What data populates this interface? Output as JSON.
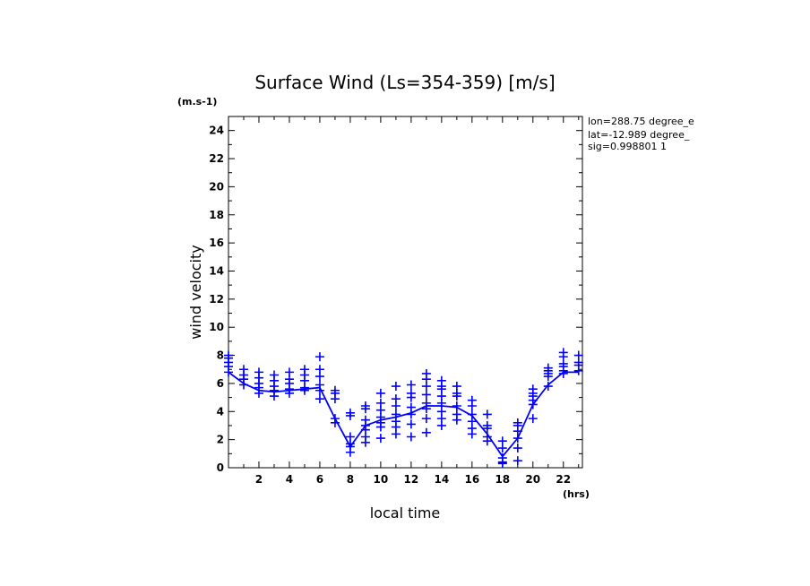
{
  "chart_data": {
    "type": "line",
    "title": "Surface Wind  (Ls=354-359) [m/s]",
    "xlabel": "local time",
    "ylabel": "wind velocity",
    "x_unit": "(hrs)",
    "y_unit": "(m.s-1)",
    "xlim": [
      0,
      23.25
    ],
    "ylim": [
      0,
      25
    ],
    "x_ticks": [
      2,
      4,
      6,
      8,
      10,
      12,
      14,
      16,
      18,
      20,
      22
    ],
    "y_ticks": [
      0,
      2,
      4,
      6,
      8,
      10,
      12,
      14,
      16,
      18,
      20,
      22,
      24
    ],
    "info_lines": [
      "lon=288.75 degree_e",
      "lat=-12.989 degree_",
      "sig=0.998801 1"
    ],
    "color": "#0000ff",
    "mean": {
      "x": [
        0,
        1,
        2,
        3,
        4,
        5,
        6,
        7,
        8,
        9,
        10,
        11,
        12,
        13,
        14,
        15,
        16,
        17,
        18,
        19,
        20,
        21,
        22,
        23
      ],
      "y": [
        6.8,
        6.0,
        5.5,
        5.4,
        5.5,
        5.6,
        5.7,
        3.5,
        1.5,
        3.0,
        3.4,
        3.6,
        3.9,
        4.4,
        4.4,
        4.3,
        3.7,
        2.4,
        0.8,
        2.1,
        4.5,
        5.9,
        6.8,
        6.8
      ]
    },
    "scatter": {
      "x": [
        0,
        1,
        2,
        3,
        4,
        5,
        6,
        7,
        8,
        9,
        10,
        11,
        12,
        13,
        14,
        15,
        16,
        17,
        18,
        19,
        20,
        21,
        22,
        23
      ],
      "values": [
        [
          6.8,
          7.2,
          7.5,
          7.8,
          8.0
        ],
        [
          5.9,
          6.3,
          6.6,
          7.0
        ],
        [
          5.3,
          5.7,
          6.0,
          6.4,
          6.8
        ],
        [
          5.1,
          5.5,
          5.8,
          6.2,
          6.6
        ],
        [
          5.3,
          5.6,
          6.0,
          6.3,
          6.8
        ],
        [
          5.5,
          5.7,
          6.2,
          6.6,
          7.0
        ],
        [
          4.9,
          5.5,
          5.9,
          6.5,
          7.0,
          7.9
        ],
        [
          3.2,
          3.5,
          4.9,
          5.3,
          5.5
        ],
        [
          1.1,
          1.5,
          1.7,
          2.2,
          3.7,
          3.9
        ],
        [
          1.8,
          2.2,
          2.7,
          3.0,
          3.4,
          4.2,
          4.4
        ],
        [
          2.1,
          2.9,
          3.2,
          3.6,
          4.1,
          4.6,
          5.3
        ],
        [
          2.4,
          2.9,
          3.3,
          3.8,
          4.4,
          4.9,
          5.8
        ],
        [
          2.2,
          3.1,
          3.8,
          4.3,
          5.0,
          5.3,
          5.9
        ],
        [
          2.5,
          3.5,
          4.2,
          4.6,
          5.2,
          5.8,
          6.3,
          6.7
        ],
        [
          3.0,
          3.5,
          4.0,
          4.6,
          5.1,
          5.6,
          5.8,
          6.2
        ],
        [
          3.4,
          3.8,
          4.4,
          5.1,
          5.3,
          5.8
        ],
        [
          2.4,
          2.8,
          3.3,
          3.8,
          4.4,
          4.8
        ],
        [
          1.9,
          2.2,
          2.8,
          3.0,
          3.8
        ],
        [
          0.3,
          0.4,
          0.7,
          1.4,
          1.9
        ],
        [
          0.5,
          1.4,
          2.1,
          2.6,
          3.0,
          3.2
        ],
        [
          3.5,
          4.5,
          4.8,
          5.1,
          5.3,
          5.6
        ],
        [
          5.8,
          6.5,
          6.7,
          6.9,
          7.1
        ],
        [
          6.7,
          6.9,
          7.2,
          7.4,
          7.9,
          8.2
        ],
        [
          6.9,
          7.3,
          7.5,
          8.0
        ]
      ]
    }
  }
}
